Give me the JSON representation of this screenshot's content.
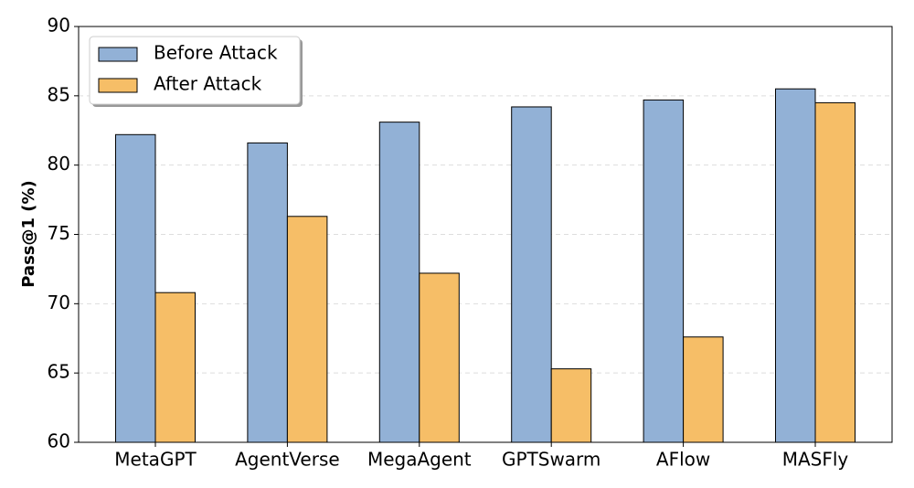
{
  "chart_data": {
    "type": "bar",
    "y_label": "Pass@1 (%)",
    "categories": [
      "MetaGPT",
      "AgentVerse",
      "MegaAgent",
      "GPTSwarm",
      "AFlow",
      "MASFly"
    ],
    "series": [
      {
        "name": "Before Attack",
        "color": "#92b1d6",
        "values": [
          82.2,
          81.6,
          83.1,
          84.2,
          84.7,
          85.5
        ]
      },
      {
        "name": "After Attack",
        "color": "#f6be67",
        "values": [
          70.8,
          76.3,
          72.2,
          65.3,
          67.6,
          84.5
        ]
      }
    ],
    "ylim": [
      60,
      90
    ],
    "yticks": [
      60,
      65,
      70,
      75,
      80,
      85,
      90
    ],
    "grid": true,
    "legend": "upper left"
  }
}
